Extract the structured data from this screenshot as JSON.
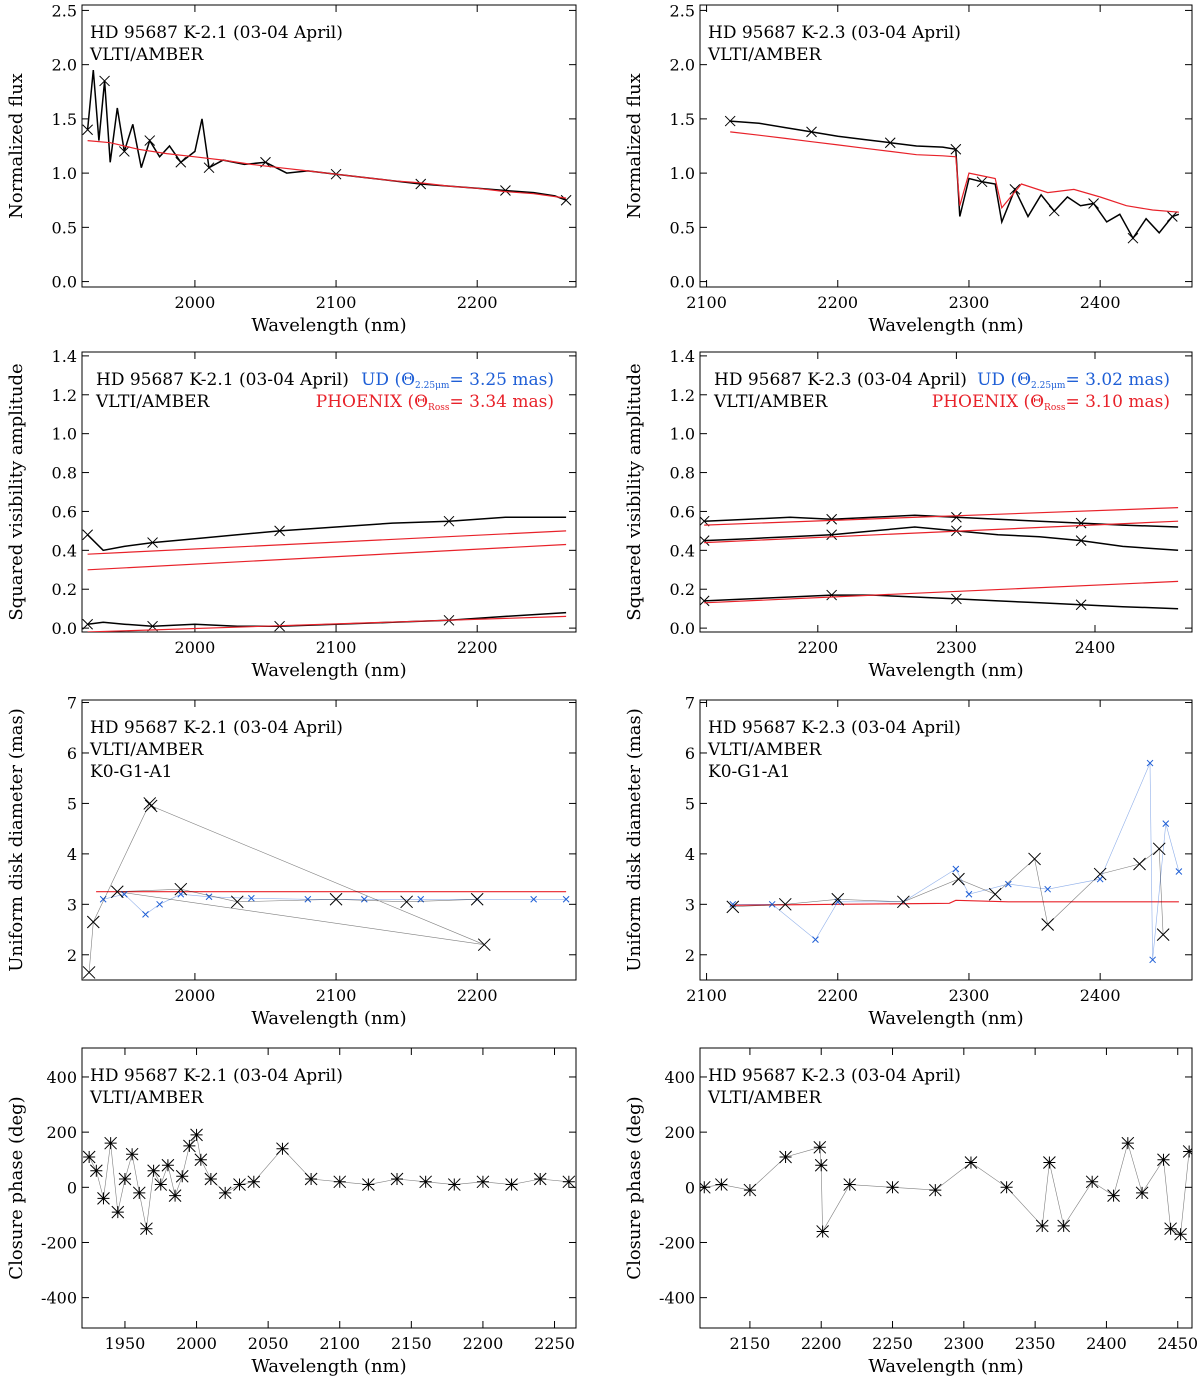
{
  "colors": {
    "observed": "#000000",
    "phoenix": "#e8222a",
    "ud": "#1f5fd6"
  },
  "chart_data": [
    {
      "type": "line",
      "ylabel": "Normalized flux",
      "xlabel": "Wavelength (nm)",
      "xlim": [
        1920,
        2270
      ],
      "ylim": [
        -0.05,
        2.55
      ],
      "xticks": [
        2000,
        2100,
        2200
      ],
      "yticks": [
        "0.0",
        "0.5",
        "1.0",
        "1.5",
        "2.0",
        "2.5"
      ],
      "annotations": [
        "HD 95687 K-2.1 (03-04 April)",
        "VLTI/AMBER"
      ],
      "series": [
        {
          "role": "observed",
          "x": [
            1924,
            1928,
            1932,
            1936,
            1940,
            1945,
            1950,
            1956,
            1962,
            1968,
            1975,
            1982,
            1990,
            2000,
            2005,
            2010,
            2020,
            2035,
            2050,
            2065,
            2080,
            2100,
            2120,
            2140,
            2160,
            2180,
            2200,
            2220,
            2240,
            2255,
            2263
          ],
          "y": [
            1.4,
            1.95,
            1.3,
            1.85,
            1.1,
            1.6,
            1.2,
            1.45,
            1.05,
            1.3,
            1.15,
            1.25,
            1.1,
            1.2,
            1.5,
            1.05,
            1.12,
            1.08,
            1.1,
            1.0,
            1.02,
            0.99,
            0.96,
            0.93,
            0.9,
            0.88,
            0.86,
            0.84,
            0.82,
            0.79,
            0.75
          ]
        },
        {
          "role": "phoenix",
          "x": [
            1924,
            1940,
            1960,
            1980,
            2000,
            2020,
            2040,
            2060,
            2080,
            2100,
            2120,
            2140,
            2160,
            2180,
            2200,
            2220,
            2240,
            2263
          ],
          "y": [
            1.3,
            1.28,
            1.22,
            1.18,
            1.15,
            1.12,
            1.08,
            1.05,
            1.02,
            0.99,
            0.96,
            0.93,
            0.91,
            0.88,
            0.86,
            0.83,
            0.81,
            0.77
          ]
        }
      ]
    },
    {
      "type": "line",
      "ylabel": "Normalized flux",
      "xlabel": "Wavelength (nm)",
      "xlim": [
        2095,
        2470
      ],
      "ylim": [
        -0.05,
        2.55
      ],
      "xticks": [
        2100,
        2200,
        2300,
        2400
      ],
      "yticks": [
        "0.0",
        "0.5",
        "1.0",
        "1.5",
        "2.0",
        "2.5"
      ],
      "annotations": [
        "HD 95687 K-2.3 (03-04 April)",
        "VLTI/AMBER"
      ],
      "series": [
        {
          "role": "observed",
          "x": [
            2118,
            2140,
            2160,
            2180,
            2200,
            2220,
            2240,
            2260,
            2280,
            2290,
            2293,
            2300,
            2310,
            2320,
            2325,
            2335,
            2345,
            2355,
            2365,
            2375,
            2385,
            2395,
            2405,
            2415,
            2425,
            2435,
            2445,
            2455,
            2460
          ],
          "y": [
            1.48,
            1.46,
            1.42,
            1.38,
            1.34,
            1.31,
            1.28,
            1.25,
            1.24,
            1.22,
            0.6,
            0.95,
            0.92,
            0.9,
            0.55,
            0.85,
            0.6,
            0.8,
            0.65,
            0.78,
            0.7,
            0.72,
            0.55,
            0.62,
            0.4,
            0.58,
            0.45,
            0.6,
            0.62
          ]
        },
        {
          "role": "phoenix",
          "x": [
            2118,
            2140,
            2160,
            2180,
            2200,
            2220,
            2240,
            2260,
            2280,
            2290,
            2293,
            2300,
            2320,
            2325,
            2340,
            2360,
            2380,
            2400,
            2420,
            2440,
            2460
          ],
          "y": [
            1.38,
            1.35,
            1.32,
            1.29,
            1.26,
            1.23,
            1.2,
            1.17,
            1.16,
            1.15,
            0.7,
            1.0,
            0.95,
            0.68,
            0.9,
            0.82,
            0.85,
            0.78,
            0.7,
            0.66,
            0.64
          ]
        }
      ]
    },
    {
      "type": "line",
      "ylabel": "Squared visibility amplitude",
      "xlabel": "Wavelength (nm)",
      "xlim": [
        1920,
        2270
      ],
      "ylim": [
        -0.02,
        1.42
      ],
      "xticks": [
        2000,
        2100,
        2200
      ],
      "yticks": [
        "0.0",
        "0.2",
        "0.4",
        "0.6",
        "0.8",
        "1.0",
        "1.2",
        "1.4"
      ],
      "annotations": [
        "HD 95687 K-2.1 (03-04 April)",
        "VLTI/AMBER"
      ],
      "legend": [
        {
          "role": "ud",
          "pre": "UD (Θ",
          "sub": "2.25μm",
          "post": "= 3.25 mas)"
        },
        {
          "role": "phoenix",
          "pre": "PHOENIX (Θ",
          "sub": "Ross",
          "post": "= 3.34 mas)"
        }
      ],
      "series": [
        {
          "role": "observed",
          "x": [
            1924,
            1935,
            1950,
            1970,
            2000,
            2030,
            2060,
            2100,
            2140,
            2180,
            2220,
            2263
          ],
          "y": [
            0.48,
            0.4,
            0.42,
            0.44,
            0.46,
            0.48,
            0.5,
            0.52,
            0.54,
            0.55,
            0.57,
            0.57
          ]
        },
        {
          "role": "observed",
          "x": [
            1924,
            1935,
            1950,
            1970,
            2000,
            2030,
            2060,
            2100,
            2140,
            2180,
            2220,
            2263
          ],
          "y": [
            0.02,
            0.03,
            0.02,
            0.01,
            0.02,
            0.01,
            0.01,
            0.02,
            0.03,
            0.04,
            0.06,
            0.08
          ]
        },
        {
          "role": "phoenix",
          "x": [
            1924,
            2263
          ],
          "y": [
            0.38,
            0.5
          ]
        },
        {
          "role": "phoenix",
          "x": [
            1924,
            2263
          ],
          "y": [
            0.3,
            0.43
          ]
        },
        {
          "role": "phoenix",
          "x": [
            1924,
            2263
          ],
          "y": [
            -0.02,
            0.06
          ]
        }
      ]
    },
    {
      "type": "line",
      "ylabel": "Squared visibility amplitude",
      "xlabel": "Wavelength (nm)",
      "xlim": [
        2115,
        2470
      ],
      "ylim": [
        -0.02,
        1.42
      ],
      "xticks": [
        2200,
        2300,
        2400
      ],
      "yticks": [
        "0.0",
        "0.2",
        "0.4",
        "0.6",
        "0.8",
        "1.0",
        "1.2",
        "1.4"
      ],
      "annotations": [
        "HD 95687 K-2.3 (03-04 April)",
        "VLTI/AMBER"
      ],
      "legend": [
        {
          "role": "ud",
          "pre": "UD (Θ",
          "sub": "2.25μm",
          "post": "= 3.02 mas)"
        },
        {
          "role": "phoenix",
          "pre": "PHOENIX (Θ",
          "sub": "Ross",
          "post": "= 3.10 mas)"
        }
      ],
      "series": [
        {
          "role": "observed",
          "x": [
            2118,
            2150,
            2180,
            2210,
            2240,
            2270,
            2300,
            2330,
            2360,
            2390,
            2420,
            2460
          ],
          "y": [
            0.55,
            0.56,
            0.57,
            0.56,
            0.57,
            0.58,
            0.57,
            0.56,
            0.55,
            0.54,
            0.53,
            0.52
          ]
        },
        {
          "role": "observed",
          "x": [
            2118,
            2150,
            2180,
            2210,
            2240,
            2270,
            2300,
            2330,
            2360,
            2390,
            2420,
            2460
          ],
          "y": [
            0.45,
            0.46,
            0.47,
            0.48,
            0.5,
            0.52,
            0.5,
            0.48,
            0.47,
            0.45,
            0.42,
            0.4
          ]
        },
        {
          "role": "observed",
          "x": [
            2118,
            2150,
            2180,
            2210,
            2240,
            2270,
            2300,
            2330,
            2360,
            2390,
            2420,
            2460
          ],
          "y": [
            0.14,
            0.15,
            0.16,
            0.17,
            0.17,
            0.16,
            0.15,
            0.14,
            0.13,
            0.12,
            0.11,
            0.1
          ]
        },
        {
          "role": "phoenix",
          "x": [
            2118,
            2460
          ],
          "y": [
            0.53,
            0.62
          ]
        },
        {
          "role": "phoenix",
          "x": [
            2118,
            2460
          ],
          "y": [
            0.44,
            0.55
          ]
        },
        {
          "role": "phoenix",
          "x": [
            2118,
            2460
          ],
          "y": [
            0.13,
            0.24
          ]
        }
      ]
    },
    {
      "type": "scatter",
      "ylabel": "Uniform disk diameter (mas)",
      "xlabel": "Wavelength (nm)",
      "xlim": [
        1920,
        2270
      ],
      "ylim": [
        1.5,
        7.05
      ],
      "xticks": [
        2000,
        2100,
        2200
      ],
      "yticks": [
        "2",
        "3",
        "4",
        "5",
        "6",
        "7"
      ],
      "annotations": [
        "HD 95687 K-2.1 (03-04 April)",
        "VLTI/AMBER",
        "K0-G1-A1"
      ],
      "series": [
        {
          "role": "phoenix",
          "x": [
            1930,
            2263
          ],
          "y": [
            3.25,
            3.25
          ]
        },
        {
          "role": "ud",
          "x": [
            1935,
            1950,
            1965,
            1975,
            1990,
            2010,
            2040,
            2080,
            2120,
            2160,
            2200,
            2240,
            2263
          ],
          "y": [
            3.1,
            3.2,
            2.8,
            3.0,
            3.2,
            3.15,
            3.12,
            3.1,
            3.1,
            3.1,
            3.1,
            3.1,
            3.1
          ]
        },
        {
          "role": "observed",
          "x": [
            1925,
            1928,
            1968,
            1969,
            2205,
            1945,
            1990,
            2030,
            2100,
            2150,
            2200
          ],
          "y": [
            1.65,
            2.65,
            5.0,
            4.95,
            2.2,
            3.25,
            3.3,
            3.05,
            3.1,
            3.05,
            3.1
          ]
        }
      ]
    },
    {
      "type": "scatter",
      "ylabel": "Uniform disk diameter (mas)",
      "xlabel": "Wavelength (nm)",
      "xlim": [
        2095,
        2470
      ],
      "ylim": [
        1.5,
        7.05
      ],
      "xticks": [
        2100,
        2200,
        2300,
        2400
      ],
      "yticks": [
        "2",
        "3",
        "4",
        "5",
        "6",
        "7"
      ],
      "annotations": [
        "HD 95687 K-2.3 (03-04 April)",
        "VLTI/AMBER",
        "K0-G1-A1"
      ],
      "series": [
        {
          "role": "phoenix",
          "x": [
            2118,
            2200,
            2285,
            2290,
            2330,
            2360,
            2400,
            2460
          ],
          "y": [
            2.98,
            3.0,
            3.02,
            3.08,
            3.05,
            3.05,
            3.05,
            3.05
          ]
        },
        {
          "role": "ud",
          "x": [
            2120,
            2150,
            2183,
            2200,
            2250,
            2290,
            2300,
            2330,
            2360,
            2400,
            2438,
            2440,
            2450,
            2460
          ],
          "y": [
            3.0,
            3.0,
            2.3,
            3.05,
            3.05,
            3.7,
            3.2,
            3.4,
            3.3,
            3.5,
            5.8,
            1.9,
            4.6,
            3.65
          ]
        },
        {
          "role": "observed",
          "x": [
            2120,
            2160,
            2200,
            2250,
            2292,
            2320,
            2350,
            2360,
            2400,
            2430,
            2445,
            2448
          ],
          "y": [
            2.95,
            3.0,
            3.1,
            3.05,
            3.5,
            3.2,
            3.9,
            2.6,
            3.6,
            3.8,
            4.1,
            2.4
          ]
        }
      ]
    },
    {
      "type": "scatter",
      "ylabel": "Closure phase (deg)",
      "xlabel": "Wavelength (nm)",
      "xlim": [
        1920,
        2265
      ],
      "ylim": [
        -510,
        505
      ],
      "xticks": [
        1950,
        2000,
        2050,
        2100,
        2150,
        2200,
        2250
      ],
      "yticks": [
        "-400",
        "-200",
        "0",
        "200",
        "400"
      ],
      "annotations": [
        "HD 95687 K-2.1 (03-04 April)",
        "VLTI/AMBER"
      ],
      "series": [
        {
          "role": "observed",
          "x": [
            1925,
            1930,
            1935,
            1940,
            1945,
            1950,
            1955,
            1960,
            1965,
            1970,
            1975,
            1980,
            1985,
            1990,
            1995,
            2000,
            2003,
            2010,
            2020,
            2030,
            2040,
            2060,
            2080,
            2100,
            2120,
            2140,
            2160,
            2180,
            2200,
            2220,
            2240,
            2260
          ],
          "y": [
            110,
            60,
            -40,
            160,
            -90,
            30,
            120,
            -20,
            -150,
            60,
            10,
            80,
            -30,
            40,
            150,
            190,
            100,
            30,
            -20,
            10,
            20,
            140,
            30,
            20,
            10,
            30,
            20,
            10,
            20,
            10,
            30,
            20
          ]
        }
      ]
    },
    {
      "type": "scatter",
      "ylabel": "Closure phase (deg)",
      "xlabel": "Wavelength (nm)",
      "xlim": [
        2115,
        2460
      ],
      "ylim": [
        -510,
        505
      ],
      "xticks": [
        2150,
        2200,
        2250,
        2300,
        2350,
        2400,
        2450
      ],
      "yticks": [
        "-400",
        "-200",
        "0",
        "200",
        "400"
      ],
      "annotations": [
        "HD 95687 K-2.3 (03-04 April)",
        "VLTI/AMBER"
      ],
      "series": [
        {
          "role": "observed",
          "x": [
            2118,
            2130,
            2150,
            2175,
            2199,
            2200,
            2201,
            2220,
            2250,
            2280,
            2305,
            2330,
            2355,
            2360,
            2370,
            2390,
            2405,
            2415,
            2425,
            2440,
            2445,
            2452,
            2458
          ],
          "y": [
            0,
            10,
            -10,
            110,
            145,
            80,
            -160,
            10,
            0,
            -10,
            90,
            0,
            -140,
            90,
            -140,
            20,
            -30,
            160,
            -20,
            100,
            -150,
            -170,
            130
          ]
        }
      ]
    }
  ]
}
